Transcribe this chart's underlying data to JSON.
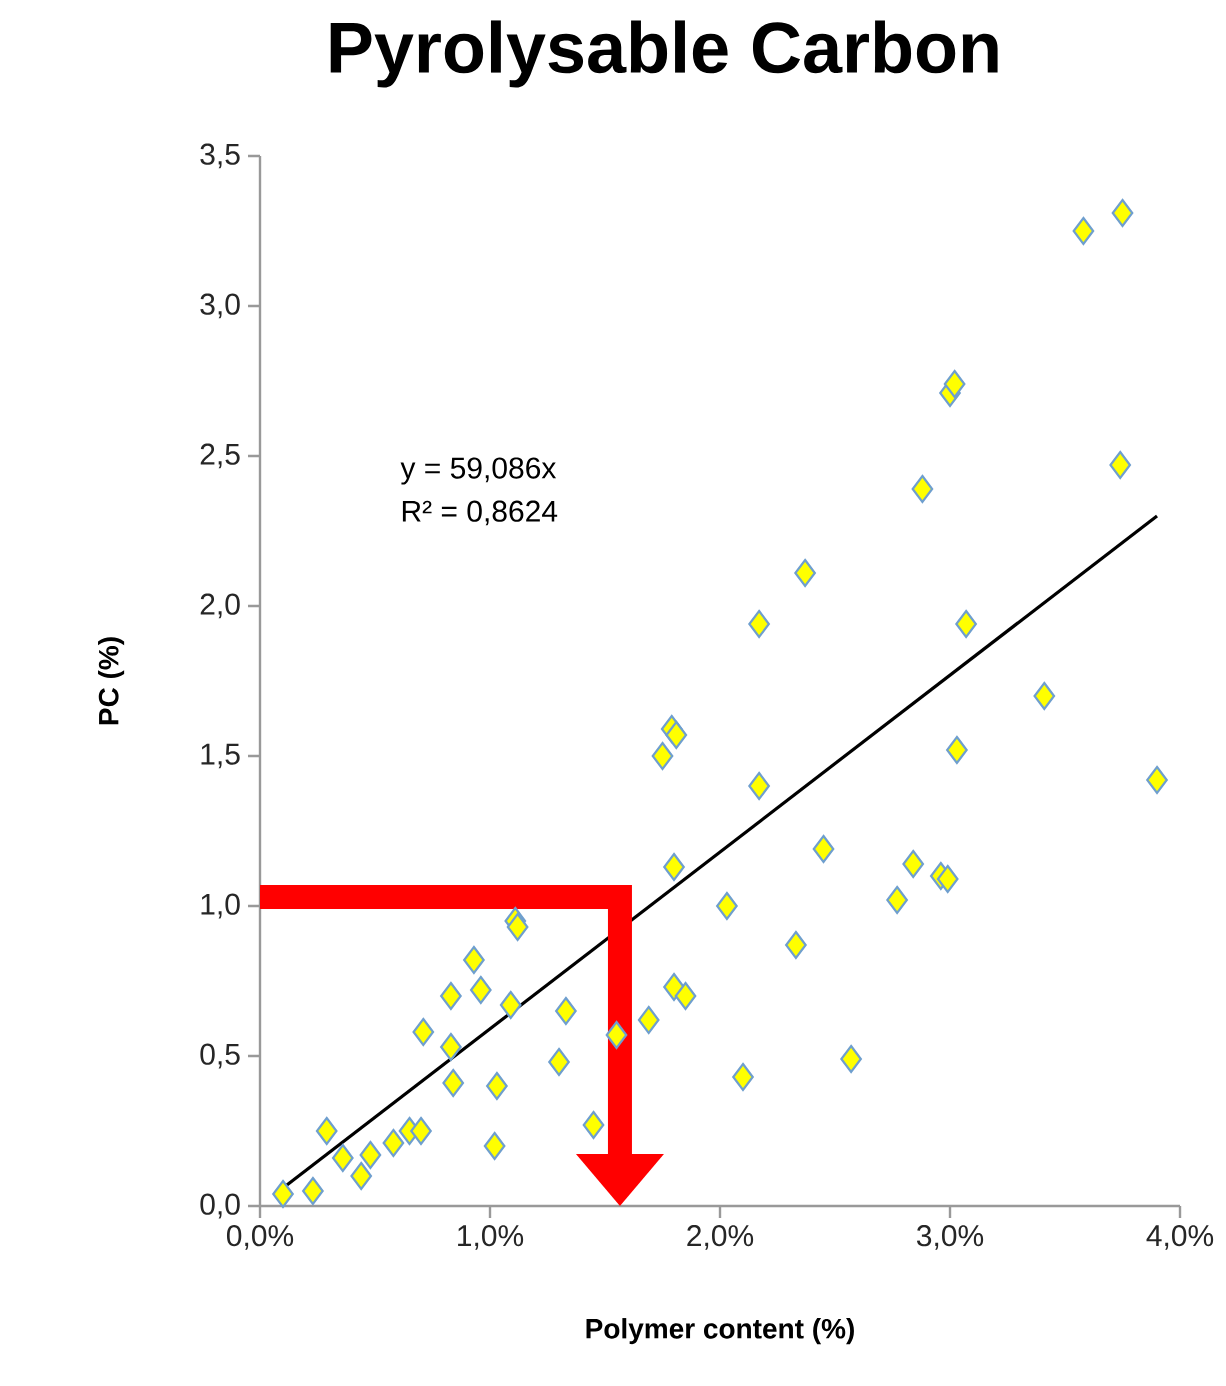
{
  "chart_data": {
    "type": "scatter",
    "title": "Pyrolysable Carbon",
    "xlabel": "Polymer content (%)",
    "ylabel": "PC (%)",
    "xlim": [
      0,
      4
    ],
    "ylim": [
      0,
      3.5
    ],
    "xticks": [
      {
        "value": 0,
        "label": "0,0%"
      },
      {
        "value": 1,
        "label": "1,0%"
      },
      {
        "value": 2,
        "label": "2,0%"
      },
      {
        "value": 3,
        "label": "3,0%"
      },
      {
        "value": 4,
        "label": "4,0%"
      }
    ],
    "yticks": [
      {
        "value": 0,
        "label": "0,0"
      },
      {
        "value": 0.5,
        "label": "0,5"
      },
      {
        "value": 1,
        "label": "1,0"
      },
      {
        "value": 1.5,
        "label": "1,5"
      },
      {
        "value": 2,
        "label": "2,0"
      },
      {
        "value": 2.5,
        "label": "2,5"
      },
      {
        "value": 3,
        "label": "3,0"
      },
      {
        "value": 3.5,
        "label": "3,5"
      }
    ],
    "grid": false,
    "marker": "diamond",
    "ref_lines": [
      {
        "axis": "y",
        "value": 1.03,
        "color": "#ff0000"
      },
      {
        "axis": "x",
        "value": 1.565,
        "color": "#ff0000"
      }
    ],
    "annotations": [
      "y = 59,086x",
      "R² = 0,8624"
    ],
    "series": [
      {
        "color": "#ffff00",
        "x": [
          0.1,
          0.23,
          0.29,
          0.36,
          0.44,
          0.48,
          0.58,
          0.65,
          0.7,
          0.71,
          0.83,
          0.83,
          0.84,
          0.93,
          0.96,
          1.03,
          1.02,
          1.09,
          1.11,
          1.12,
          1.3,
          1.33,
          1.45,
          1.55,
          1.69,
          1.8,
          1.85,
          1.8,
          1.75,
          1.79,
          1.81,
          2.03,
          2.1,
          2.17,
          2.17,
          2.33,
          2.37,
          2.45,
          2.57,
          2.77,
          2.84,
          2.88,
          2.96,
          2.99,
          3.0,
          3.02,
          3.03,
          3.07,
          3.41,
          3.58,
          3.75,
          3.74,
          3.9
        ],
        "values": [
          0.04,
          0.05,
          0.25,
          0.16,
          0.1,
          0.17,
          0.21,
          0.25,
          0.25,
          0.58,
          0.7,
          0.53,
          0.41,
          0.82,
          0.72,
          0.4,
          0.2,
          0.67,
          0.95,
          0.93,
          0.48,
          0.65,
          0.27,
          0.57,
          0.62,
          0.73,
          0.7,
          1.13,
          1.5,
          1.59,
          1.57,
          1.0,
          0.43,
          1.94,
          1.4,
          0.87,
          2.11,
          1.19,
          0.49,
          1.02,
          1.14,
          2.39,
          1.1,
          1.09,
          2.71,
          2.74,
          1.52,
          1.94,
          1.7,
          3.25,
          3.31,
          2.47,
          1.42
        ]
      },
      {
        "type": "line",
        "color": "#000000",
        "marker": "none",
        "x": [
          0.1,
          3.9
        ],
        "values": [
          0.06,
          2.3
        ]
      }
    ]
  }
}
